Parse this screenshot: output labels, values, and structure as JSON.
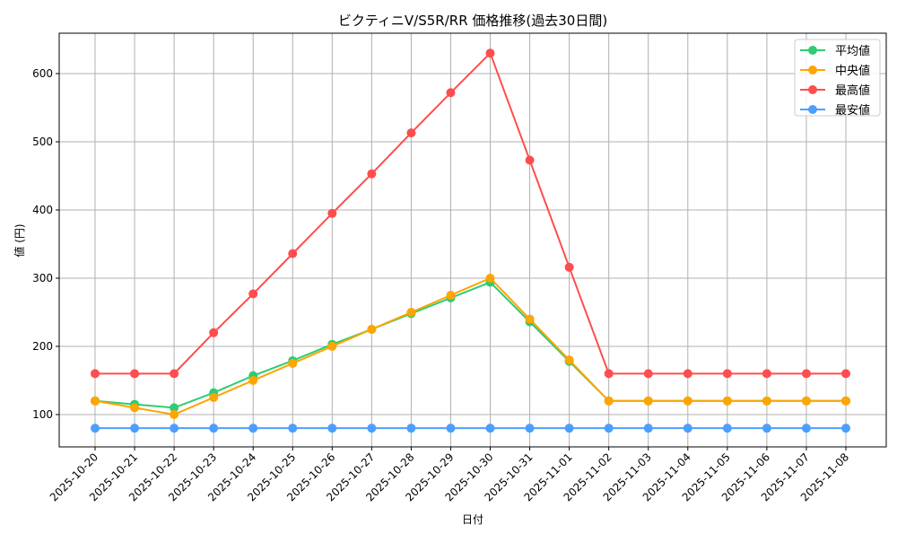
{
  "chart_data": {
    "type": "line",
    "title": "ビクティニV/S5R/RR 価格推移(過去30日間)",
    "xlabel": "日付",
    "ylabel": "値 (円)",
    "ylim": [
      52.6,
      659.2
    ],
    "yticks": [
      100,
      200,
      300,
      400,
      500,
      600
    ],
    "grid": true,
    "legend_position": "top-right",
    "categories": [
      "2025-10-20",
      "2025-10-21",
      "2025-10-22",
      "2025-10-23",
      "2025-10-24",
      "2025-10-25",
      "2025-10-26",
      "2025-10-27",
      "2025-10-28",
      "2025-10-29",
      "2025-10-30",
      "2025-10-31",
      "2025-11-01",
      "2025-11-02",
      "2025-11-03",
      "2025-11-04",
      "2025-11-05",
      "2025-11-06",
      "2025-11-07",
      "2025-11-08"
    ],
    "series": [
      {
        "name": "平均値",
        "color": "#2ecc71",
        "values": [
          120,
          115,
          110,
          132,
          157,
          179,
          203,
          225,
          248,
          271,
          294,
          236,
          178,
          120,
          120,
          120,
          120,
          120,
          120,
          120
        ]
      },
      {
        "name": "中央値",
        "color": "#ffa500",
        "values": [
          120,
          110,
          100,
          125,
          150,
          175,
          200,
          225,
          250,
          275,
          300,
          240,
          180,
          120,
          120,
          120,
          120,
          120,
          120,
          120
        ]
      },
      {
        "name": "最高値",
        "color": "#ff4d4d",
        "values": [
          160,
          160,
          160,
          220,
          277,
          336,
          395,
          453,
          513,
          572,
          630,
          473,
          316,
          160,
          160,
          160,
          160,
          160,
          160,
          160
        ]
      },
      {
        "name": "最安値",
        "color": "#4d9fff",
        "values": [
          80,
          80,
          80,
          80,
          80,
          80,
          80,
          80,
          80,
          80,
          80,
          80,
          80,
          80,
          80,
          80,
          80,
          80,
          80,
          80
        ]
      }
    ]
  }
}
